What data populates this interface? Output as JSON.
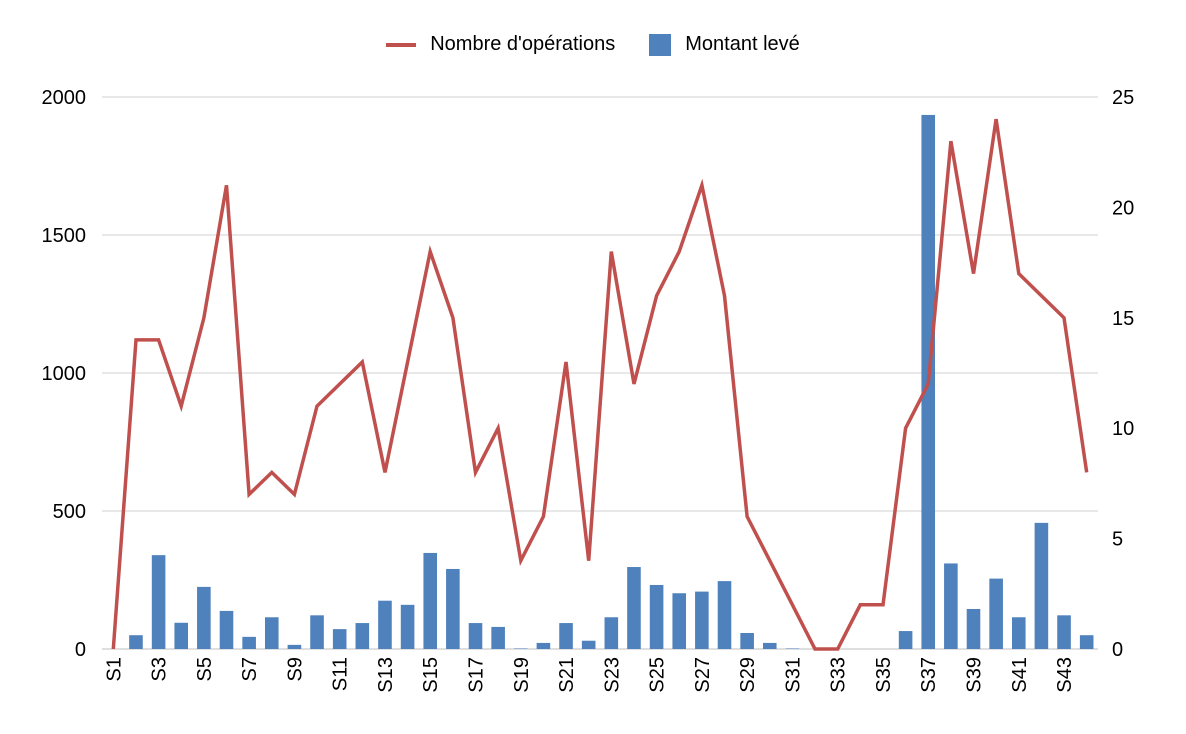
{
  "chart_data": {
    "type": "bar",
    "legend": [
      {
        "label": "Nombre d'opérations",
        "color": "#c0504d",
        "kind": "line"
      },
      {
        "label": "Montant levé",
        "color": "#4f81bd",
        "kind": "bar"
      }
    ],
    "categories": [
      "S1",
      "S2",
      "S3",
      "S4",
      "S5",
      "S6",
      "S7",
      "S8",
      "S9",
      "S10",
      "S11",
      "S12",
      "S13",
      "S14",
      "S15",
      "S16",
      "S17",
      "S18",
      "S19",
      "S20",
      "S21",
      "S22",
      "S23",
      "S24",
      "S25",
      "S26",
      "S27",
      "S28",
      "S29",
      "S30",
      "S31",
      "S32",
      "S33",
      "S34",
      "S35",
      "S36",
      "S37",
      "S38",
      "S39",
      "S40",
      "S41",
      "S42",
      "S43",
      "S44"
    ],
    "x_tick_labels": [
      "S1",
      "S3",
      "S5",
      "S7",
      "S9",
      "S11",
      "S13",
      "S15",
      "S17",
      "S19",
      "S21",
      "S23",
      "S25",
      "S27",
      "S29",
      "S31",
      "S33",
      "S35",
      "S37",
      "S39",
      "S41",
      "S43"
    ],
    "series": [
      {
        "name": "Montant levé",
        "axis": "left",
        "type": "bar",
        "values": [
          0,
          50,
          340,
          95,
          225,
          138,
          44,
          115,
          15,
          122,
          72,
          94,
          175,
          160,
          348,
          290,
          94,
          80,
          2,
          22,
          94,
          30,
          115,
          297,
          232,
          202,
          208,
          246,
          58,
          22,
          2,
          0,
          0,
          0,
          0,
          65,
          1935,
          310,
          145,
          255,
          115,
          457,
          122,
          50
        ]
      },
      {
        "name": "Nombre d'opérations",
        "axis": "right",
        "type": "line",
        "values": [
          0,
          14,
          14,
          11,
          15,
          21,
          7,
          8,
          7,
          11,
          12,
          13,
          8,
          13,
          18,
          15,
          8,
          10,
          4,
          6,
          13,
          4,
          18,
          12,
          16,
          18,
          21,
          16,
          6,
          4,
          2,
          0,
          0,
          2,
          2,
          10,
          12,
          23,
          17,
          24,
          17,
          16,
          15,
          8
        ]
      }
    ],
    "y_left": {
      "min": 0,
      "max": 2000,
      "ticks": [
        0,
        500,
        1000,
        1500,
        2000
      ]
    },
    "y_right": {
      "min": 0,
      "max": 25,
      "ticks": [
        0,
        5,
        10,
        15,
        20,
        25
      ]
    },
    "grid": true,
    "legend_position": "top-center"
  }
}
